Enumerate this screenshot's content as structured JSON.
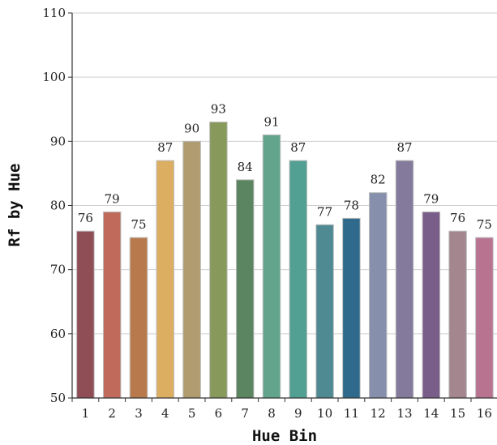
{
  "chart_data": {
    "type": "bar",
    "categories": [
      "1",
      "2",
      "3",
      "4",
      "5",
      "6",
      "7",
      "8",
      "9",
      "10",
      "11",
      "12",
      "13",
      "14",
      "15",
      "16"
    ],
    "values": [
      76,
      79,
      75,
      87,
      90,
      93,
      84,
      91,
      87,
      77,
      78,
      82,
      87,
      79,
      76,
      75
    ],
    "colors": [
      "#8f4e55",
      "#c06a5c",
      "#b87a4c",
      "#dcae62",
      "#b09c6e",
      "#87995b",
      "#5b8560",
      "#62a58c",
      "#52a094",
      "#4f8a93",
      "#2f6a8c",
      "#8690ad",
      "#837a9c",
      "#7a5e8a",
      "#a4868f",
      "#b87391"
    ],
    "title": "",
    "xlabel": "Hue Bin",
    "ylabel": "Rf by Hue",
    "ylim": [
      50,
      110
    ],
    "yticks": [
      50,
      60,
      70,
      80,
      90,
      100,
      110
    ],
    "grid": true,
    "data_labels": true
  }
}
